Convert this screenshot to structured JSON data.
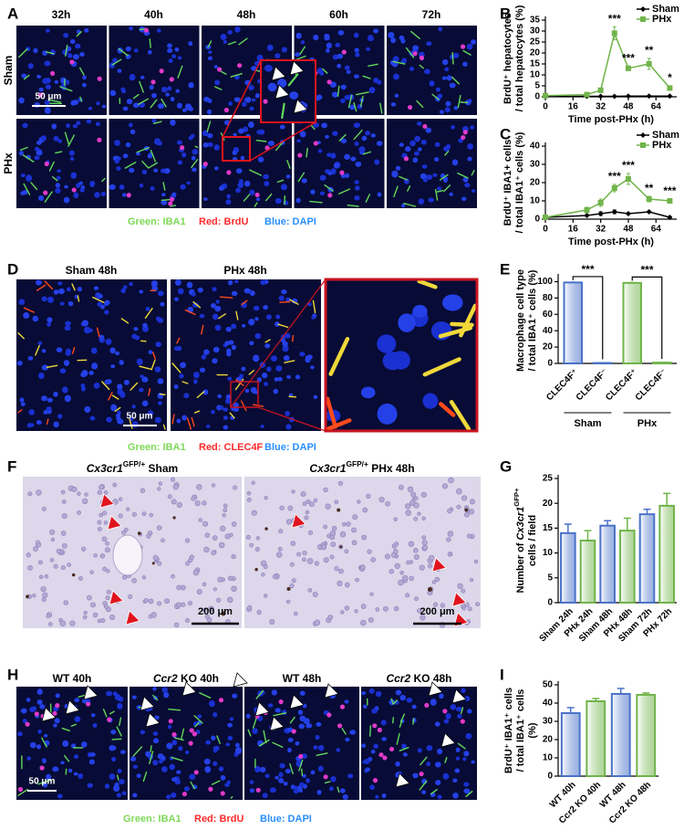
{
  "figure": {
    "panel_labels": [
      "A",
      "B",
      "C",
      "D",
      "E",
      "F",
      "G",
      "H",
      "I"
    ],
    "a": {
      "columns": [
        "32h",
        "40h",
        "48h",
        "60h",
        "72h"
      ],
      "rows": [
        "Sham",
        "PHx"
      ],
      "scale_bar": "50 μm",
      "legend": [
        "Green: IBA1",
        "Red: BrdU",
        "Blue: DAPI"
      ]
    },
    "d": {
      "titles": [
        "Sham 48h",
        "PHx 48h"
      ],
      "scale_bar": "50 μm",
      "legend": [
        "Green: IBA1",
        "Red: CLEC4F",
        "Blue: DAPI"
      ]
    },
    "f": {
      "titles": [
        [
          {
            "text": "Cx3cr1",
            "style": "italic"
          },
          {
            "text": "GFP/+",
            "style": "sup"
          },
          {
            "text": " Sham"
          }
        ],
        [
          {
            "text": "Cx3cr1",
            "style": "italic"
          },
          {
            "text": "GFP/+",
            "style": "sup"
          },
          {
            "text": " PHx 48h"
          }
        ]
      ],
      "scale_bar": "200 μm"
    },
    "h": {
      "titles": [
        [
          {
            "text": "WT 40h"
          }
        ],
        [
          {
            "text": "Ccr2",
            "style": "italic"
          },
          {
            "text": " KO 40h"
          }
        ],
        [
          {
            "text": "WT 48h"
          }
        ],
        [
          {
            "text": "Ccr2",
            "style": "italic"
          },
          {
            "text": " KO 48h"
          }
        ]
      ],
      "scale_bar": "50 μm",
      "legend": [
        "Green: IBA1",
        "Red: BrdU",
        "Blue: DAPI"
      ]
    }
  },
  "chart_data": [
    {
      "type": "line",
      "ylabel": [
        [
          {
            "text": "BrdU⁺ hepatocytes"
          }
        ],
        [
          {
            "text": "/ total hepatocytes (%)"
          }
        ]
      ],
      "xlabel": "Time post-PHx (h)",
      "x": [
        0,
        24,
        32,
        40,
        48,
        60,
        72
      ],
      "xlim": [
        0,
        76
      ],
      "xticks": [
        0,
        16,
        32,
        48,
        64
      ],
      "ylim": [
        0,
        35
      ],
      "yticks": [
        0,
        5,
        10,
        15,
        20,
        25,
        30,
        35
      ],
      "legend": "upper right",
      "series": [
        {
          "name": "Sham",
          "color": "#000000",
          "marker": "diamond",
          "values": [
            0.2,
            0.2,
            0.2,
            0.2,
            0.3,
            0.3,
            0.3
          ],
          "errors": [
            0.1,
            0.1,
            0.1,
            0.1,
            0.1,
            0.1,
            0.1
          ]
        },
        {
          "name": "PHx",
          "color": "#70b44a",
          "marker": "square",
          "values": [
            0.5,
            1,
            3,
            29,
            13,
            15,
            4
          ],
          "errors": [
            0.3,
            0.5,
            1,
            3,
            1,
            2.5,
            1
          ]
        }
      ],
      "annotations": [
        {
          "text": "***",
          "x": 40
        },
        {
          "text": "***",
          "x": 48
        },
        {
          "text": "**",
          "x": 60
        },
        {
          "text": "*",
          "x": 72
        }
      ]
    },
    {
      "type": "line",
      "ylabel": [
        [
          {
            "text": "BrdU⁺ IBA1+ cells"
          }
        ],
        [
          {
            "text": "/ total IBA1⁺ cells (%)"
          }
        ]
      ],
      "xlabel": "Time post-PHx (h)",
      "x": [
        0,
        24,
        32,
        40,
        48,
        60,
        72
      ],
      "xlim": [
        0,
        76
      ],
      "xticks": [
        0,
        16,
        32,
        48,
        64
      ],
      "ylim": [
        0,
        40
      ],
      "yticks": [
        0,
        10,
        20,
        30,
        40
      ],
      "legend": "upper right",
      "series": [
        {
          "name": "Sham",
          "color": "#000000",
          "marker": "diamond",
          "values": [
            1,
            2,
            3,
            4,
            3,
            4,
            1
          ],
          "errors": [
            0.5,
            0.5,
            1,
            1,
            0.5,
            0.5,
            0.5
          ]
        },
        {
          "name": "PHx",
          "color": "#70b44a",
          "marker": "square",
          "values": [
            1,
            5,
            9,
            17,
            22,
            11,
            10
          ],
          "errors": [
            0.5,
            1.5,
            2,
            2,
            3,
            1.5,
            1
          ]
        }
      ],
      "annotations": [
        {
          "text": "***",
          "x": 40
        },
        {
          "text": "***",
          "x": 48
        },
        {
          "text": "**",
          "x": 60
        },
        {
          "text": "***",
          "x": 72
        }
      ]
    },
    {
      "type": "grouped_bar",
      "ylabel": [
        [
          {
            "text": "Macrophage cell type"
          }
        ],
        [
          {
            "text": "/ total IBA1⁺ cells (%)"
          }
        ]
      ],
      "categories": [
        "CLEC4F⁺",
        "CLEC4F⁻"
      ],
      "ylim": [
        0,
        105
      ],
      "yticks": [
        0,
        20,
        40,
        60,
        80,
        100
      ],
      "series": [
        {
          "name": "Sham",
          "color": "#4a72c8",
          "values": [
            99,
            0.5
          ],
          "errors": [
            0.5,
            0.2
          ],
          "significance": "***"
        },
        {
          "name": "PHx",
          "color": "#70b44a",
          "values": [
            98.5,
            1
          ],
          "errors": [
            0.5,
            0.3
          ],
          "significance": "***"
        }
      ]
    },
    {
      "type": "bar",
      "ylabel": [
        [
          {
            "text": "Number of "
          },
          {
            "text": "Cx3cr1",
            "style": "italic"
          },
          {
            "text": "GFP+",
            "style": "sup"
          }
        ],
        [
          {
            "text": "cells / field"
          }
        ]
      ],
      "categories": [
        "Sham 24h",
        "PHx 24h",
        "Sham 48h",
        "PHx 48h",
        "Sham 72h",
        "PHx 72h"
      ],
      "values": [
        14,
        12.5,
        15.5,
        14.5,
        17.8,
        19.5
      ],
      "errors": [
        1.8,
        2,
        1,
        2.5,
        1,
        2.5
      ],
      "colors": [
        "#4a72c8",
        "#70b44a",
        "#4a72c8",
        "#70b44a",
        "#4a72c8",
        "#70b44a"
      ],
      "ylim": [
        0,
        25
      ],
      "yticks": [
        0,
        5,
        10,
        15,
        20,
        25
      ]
    },
    {
      "type": "bar",
      "ylabel": [
        [
          {
            "text": "BrdU⁺ IBA1⁺ cells"
          }
        ],
        [
          {
            "text": "/ total IBA1⁺ cells"
          }
        ],
        [
          {
            "text": "(%)"
          }
        ]
      ],
      "categories": [
        "WT 40h",
        "Ccr2 KO 40h",
        "WT 48h",
        "Ccr2 KO 48h"
      ],
      "values": [
        34.5,
        41,
        45,
        44.5
      ],
      "errors": [
        3,
        1.5,
        3,
        1
      ],
      "colors": [
        "#4a72c8",
        "#70b44a",
        "#4a72c8",
        "#70b44a"
      ],
      "ylim": [
        0,
        50
      ],
      "yticks": [
        0,
        10,
        20,
        30,
        40,
        50
      ]
    }
  ]
}
